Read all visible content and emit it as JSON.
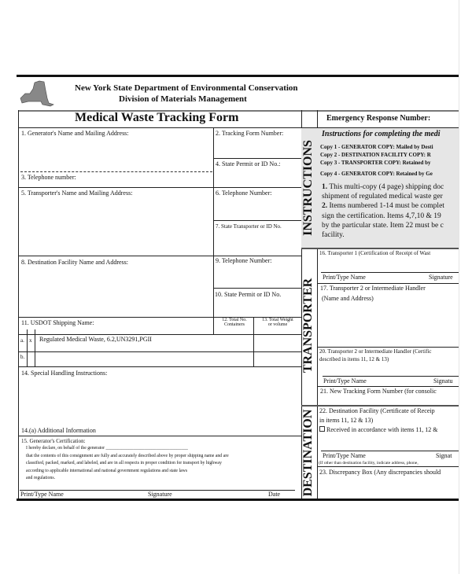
{
  "header": {
    "line1": "New York State Department of Environmental Conservation",
    "line2": "Division of  Materials Management",
    "logo": "new-york-state-map"
  },
  "title": "Medical Waste Tracking Form",
  "emergency": "Emergency Response Number:",
  "fields": {
    "f1": "1. Generator's Name and Mailing Address:",
    "f2": "2. Tracking Form Number:",
    "f3": "3. Telephone number:",
    "f4": "4. State Permit or ID No.:",
    "f5": "5. Transporter's Name and Mailing Address:",
    "f6": "6. Telephone Number:",
    "f7": "7. State Transporter or ID No.",
    "f8": "8. Destination Facility Name and Address:",
    "f9": "9. Telephone Number:",
    "f10": "10. State Permit or ID No.",
    "f11": "11. USDOT Shipping Name:",
    "f12a": "12. Total No.",
    "f12b": "Containers",
    "f13a": "13. Total Weight",
    "f13b": "or volume",
    "row_a": "a.",
    "row_a_mark": "x",
    "row_a_text": "Regulated Medical Waste, 6.2,UN3291,PGII",
    "row_b": "b.",
    "f14": "14. Special Handling Instructions:",
    "f14a": "14.(a) Additional Information",
    "f15": "15. Generator's Certification:",
    "cert": [
      "I hereby declare, on behalf of the generator ____________________________________",
      "that the contents of this consignment are fully and accurately described above by proper shipping name and are",
      "classified, packed, marked, and labeled, and are in all respects in proper condition for transport by highway",
      "according to applicable international and national government regulations and state laws",
      "and regulations."
    ],
    "sig_print": "Print/Type Name",
    "sig_sign": "Signature",
    "sig_date": "Date"
  },
  "sections": {
    "instructions": "INSTRUCTIONS",
    "transporter": "TRANSPORTER",
    "destination": "DESTINATION"
  },
  "instructions": {
    "heading": "Instructions for completing the medi",
    "copies": [
      "Copy 1 - GENERATOR COPY: Mailed by Desti",
      "Copy 2 - DESTINATION FACILITY COPY: R",
      "Copy 3 - TRANSPORTER COPY: Retained by",
      "Copy 4 - GENERATOR COPY: Retained by Ge"
    ],
    "lines": [
      [
        "1.",
        "This multi-copy (4 page) shipping doc"
      ],
      [
        "",
        "shipment of  regulated medical waste ger"
      ],
      [
        "2.",
        "Items numbered 1-14 must be complet"
      ],
      [
        "",
        "sign the certification.  Items 4,7,10 & 19"
      ],
      [
        "",
        "by the particular state. Item 22 must be c"
      ],
      [
        "",
        "facility."
      ]
    ]
  },
  "right": {
    "f16": "16. Transporter 1 (Certification of Receipt of Wast",
    "print1": "Print/Type Name",
    "sign1": "Signature",
    "f17": "17. Transporter 2 or Intermediate Handler",
    "f17b": "(Name and Address)",
    "f20": "20. Transporter 2 or Intermediate Handler (Certific",
    "f20b": "described in items 11, 12 & 13)",
    "print2": "Print/Type Name",
    "sign2": "Signatu",
    "f21": "21. New Tracking Form Number (for consolic",
    "f22": "22. Destination Facility (Certificate of Receip",
    "f22b": "in items 11, 12 & 13)",
    "f22c": "Received in accordance with items 11, 12 &",
    "print3": "Print/Type Name",
    "sign3": "Signat",
    "f22d": "(If other than destination facility, indicate address, phone,",
    "f23": "23. Discrepancy Box (Any discrepancies should"
  }
}
